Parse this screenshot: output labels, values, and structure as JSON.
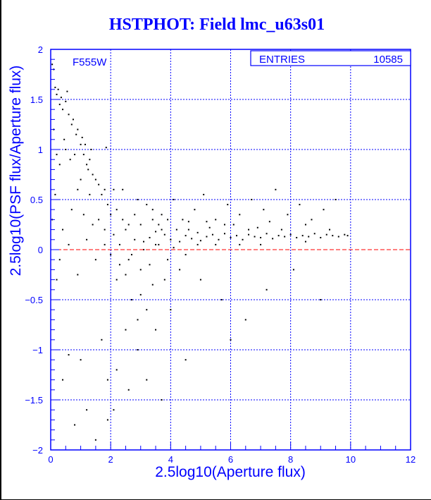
{
  "chart_data": {
    "type": "scatter",
    "title": "HSTPHOT: Field lmc_u63s01",
    "xlabel": "2.5log10(Aperture flux)",
    "ylabel": "2.5log10(PSF flux/Aperture flux)",
    "xlim": [
      0,
      12
    ],
    "ylim": [
      -2,
      2
    ],
    "xticks": [
      "0",
      "2",
      "4",
      "6",
      "8",
      "10",
      "12"
    ],
    "yticks": [
      "-2",
      "-1.5",
      "-1",
      "-0.5",
      "0",
      "0.5",
      "1",
      "1.5",
      "2"
    ],
    "grid": true,
    "reference_line_y": 0,
    "annotation": "F555W",
    "stats": {
      "label": "ENTRIES",
      "value": "10585"
    },
    "colors": {
      "axes": "#0000ff",
      "points": "#000000",
      "reference_line": "#ff0000",
      "grid": "#0000ff"
    },
    "points_note_sampled": true,
    "points": [
      [
        2.1,
        0.15
      ],
      [
        2.3,
        0.05
      ],
      [
        2.5,
        0.2
      ],
      [
        2.6,
        -0.1
      ],
      [
        2.8,
        0.1
      ],
      [
        3.0,
        0.25
      ],
      [
        3.1,
        0.0
      ],
      [
        3.3,
        0.12
      ],
      [
        3.5,
        0.18
      ],
      [
        3.6,
        0.05
      ],
      [
        3.8,
        0.15
      ],
      [
        4.0,
        0.1
      ],
      [
        4.2,
        0.2
      ],
      [
        4.3,
        0.08
      ],
      [
        4.5,
        0.14
      ],
      [
        4.7,
        0.11
      ],
      [
        4.9,
        0.17
      ],
      [
        5.0,
        0.09
      ],
      [
        5.2,
        0.13
      ],
      [
        5.4,
        0.15
      ],
      [
        5.6,
        0.1
      ],
      [
        5.8,
        0.16
      ],
      [
        6.0,
        0.12
      ],
      [
        6.2,
        0.14
      ],
      [
        6.4,
        0.1
      ],
      [
        6.6,
        0.15
      ],
      [
        6.8,
        0.13
      ],
      [
        7.0,
        0.12
      ],
      [
        7.2,
        0.16
      ],
      [
        7.4,
        0.11
      ],
      [
        7.6,
        0.14
      ],
      [
        7.8,
        0.13
      ],
      [
        8.0,
        0.15
      ],
      [
        8.2,
        0.12
      ],
      [
        8.4,
        0.14
      ],
      [
        8.6,
        0.13
      ],
      [
        8.8,
        0.16
      ],
      [
        9.0,
        0.12
      ],
      [
        9.2,
        0.15
      ],
      [
        9.4,
        0.14
      ],
      [
        9.6,
        0.13
      ],
      [
        9.8,
        0.15
      ],
      [
        9.9,
        0.14
      ],
      [
        3.2,
        0.45
      ],
      [
        3.7,
        0.35
      ],
      [
        4.1,
        0.5
      ],
      [
        4.4,
        0.3
      ],
      [
        4.8,
        0.4
      ],
      [
        5.1,
        0.55
      ],
      [
        5.5,
        0.3
      ],
      [
        5.9,
        0.45
      ],
      [
        6.3,
        0.35
      ],
      [
        6.7,
        0.5
      ],
      [
        7.1,
        0.4
      ],
      [
        7.5,
        0.6
      ],
      [
        7.9,
        0.35
      ],
      [
        8.3,
        0.45
      ],
      [
        8.7,
        0.3
      ],
      [
        9.1,
        0.4
      ],
      [
        9.5,
        0.5
      ],
      [
        8.5,
        0.25
      ],
      [
        6.1,
        0.25
      ],
      [
        4.6,
        0.28
      ],
      [
        2.9,
        0.5
      ],
      [
        2.4,
        0.6
      ],
      [
        3.4,
        0.3
      ],
      [
        5.3,
        0.22
      ],
      [
        7.3,
        0.28
      ],
      [
        6.9,
        0.22
      ],
      [
        3.0,
        -0.2
      ],
      [
        3.4,
        -0.35
      ],
      [
        2.7,
        -0.5
      ],
      [
        2.2,
        -0.3
      ],
      [
        3.9,
        -0.1
      ],
      [
        4.5,
        -0.05
      ],
      [
        5.0,
        -0.3
      ],
      [
        5.7,
        -0.5
      ],
      [
        6.5,
        -0.7
      ],
      [
        7.2,
        -0.4
      ],
      [
        8.1,
        -0.2
      ],
      [
        2.5,
        -0.8
      ],
      [
        2.9,
        -1.0
      ],
      [
        3.5,
        -0.8
      ],
      [
        2.2,
        -1.2
      ],
      [
        3.2,
        -1.3
      ],
      [
        1.9,
        -1.7
      ],
      [
        1.5,
        -1.9
      ],
      [
        1.2,
        -1.6
      ],
      [
        0.8,
        -1.75
      ],
      [
        0.4,
        -1.3
      ],
      [
        1.0,
        -1.1
      ],
      [
        1.7,
        -0.9
      ],
      [
        4.5,
        -1.1
      ],
      [
        6.0,
        -0.9
      ],
      [
        9.0,
        -0.5
      ],
      [
        4.0,
        -0.6
      ],
      [
        3.7,
        -1.5
      ],
      [
        2.6,
        -1.4
      ],
      [
        1.9,
        -1.3
      ],
      [
        2.1,
        -1.6
      ],
      [
        0.6,
        -1.05
      ],
      [
        0.05,
        1.85
      ],
      [
        0.1,
        1.8
      ],
      [
        0.15,
        1.62
      ],
      [
        0.2,
        1.55
      ],
      [
        0.3,
        1.45
      ],
      [
        0.25,
        1.6
      ],
      [
        0.35,
        1.52
      ],
      [
        0.4,
        1.4
      ],
      [
        0.5,
        1.48
      ],
      [
        0.55,
        1.58
      ],
      [
        0.6,
        1.35
      ],
      [
        0.7,
        1.25
      ],
      [
        0.75,
        1.3
      ],
      [
        0.85,
        1.15
      ],
      [
        0.9,
        1.2
      ],
      [
        1.0,
        1.05
      ],
      [
        1.05,
        1.12
      ],
      [
        1.1,
        0.95
      ],
      [
        1.2,
        0.85
      ],
      [
        1.25,
        0.8
      ],
      [
        1.3,
        0.9
      ],
      [
        1.4,
        0.75
      ],
      [
        1.5,
        0.7
      ],
      [
        1.6,
        0.65
      ],
      [
        1.7,
        0.55
      ],
      [
        1.8,
        0.6
      ],
      [
        1.9,
        0.45
      ],
      [
        0.1,
        1.2
      ],
      [
        0.2,
        0.95
      ],
      [
        0.3,
        0.85
      ],
      [
        0.5,
        1.0
      ],
      [
        0.65,
        0.9
      ],
      [
        0.8,
        0.95
      ],
      [
        0.45,
        1.1
      ],
      [
        1.15,
        1.05
      ],
      [
        1.35,
        1.0
      ],
      [
        1.85,
        1.02
      ],
      [
        1.0,
        0.7
      ],
      [
        1.3,
        0.55
      ],
      [
        0.9,
        0.6
      ],
      [
        0.7,
        0.4
      ],
      [
        0.15,
        0.55
      ],
      [
        0.05,
        0.3
      ],
      [
        0.4,
        0.2
      ],
      [
        1.1,
        0.35
      ],
      [
        1.6,
        0.3
      ],
      [
        1.8,
        0.2
      ],
      [
        0.3,
        -0.1
      ],
      [
        0.2,
        -0.3
      ],
      [
        0.9,
        -0.25
      ],
      [
        1.5,
        -0.1
      ],
      [
        1.2,
        0.1
      ],
      [
        0.6,
        0.05
      ],
      [
        1.8,
        0.05
      ],
      [
        1.4,
        0.25
      ],
      [
        2.0,
        0.35
      ],
      [
        2.2,
        0.4
      ],
      [
        2.4,
        0.3
      ],
      [
        2.6,
        0.25
      ],
      [
        2.8,
        0.35
      ],
      [
        2.3,
        -0.15
      ],
      [
        2.5,
        -0.25
      ],
      [
        2.7,
        -0.05
      ],
      [
        3.0,
        -0.45
      ],
      [
        3.2,
        -0.6
      ],
      [
        3.4,
        0.4
      ],
      [
        3.6,
        0.25
      ],
      [
        3.8,
        -0.3
      ],
      [
        2.1,
        0.6
      ],
      [
        2.0,
        -0.05
      ],
      [
        2.9,
        -0.7
      ],
      [
        3.1,
        0.08
      ],
      [
        3.3,
        -0.15
      ],
      [
        3.5,
        0.05
      ],
      [
        3.7,
        0.2
      ],
      [
        3.9,
        0.3
      ],
      [
        4.1,
        0.02
      ],
      [
        4.3,
        -0.2
      ],
      [
        4.6,
        0.2
      ],
      [
        4.9,
        0.05
      ],
      [
        5.2,
        0.28
      ],
      [
        5.5,
        0.05
      ],
      [
        5.8,
        0.25
      ],
      [
        6.3,
        0.05
      ],
      [
        6.6,
        0.2
      ],
      [
        7.0,
        0.05
      ],
      [
        7.7,
        0.2
      ],
      [
        8.5,
        0.08
      ],
      [
        9.3,
        0.2
      ]
    ]
  }
}
